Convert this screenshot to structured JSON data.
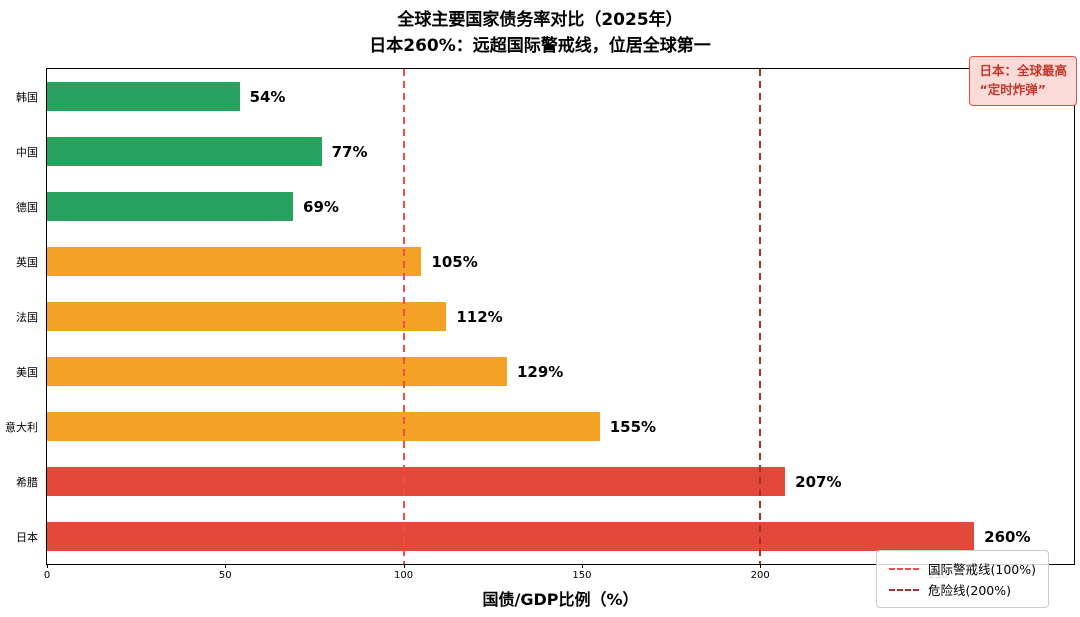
{
  "title": "全球主要国家债务率对比（2025年）",
  "subtitle": "日本260%：远超国际警戒线，位居全球第一",
  "xlabel": "国债/GDP比例（%）",
  "annotation": {
    "line1": "日本：全球最高",
    "line2": "“定时炸弹”"
  },
  "legend": [
    {
      "label": "国际警戒线(100%)",
      "color": "#f24c4c"
    },
    {
      "label": "危险线(200%)",
      "color": "#a93226"
    }
  ],
  "colors": {
    "safe": "#27a35f",
    "warning": "#f4a226",
    "danger": "#e2493b",
    "warning_line": "#f24c4c",
    "danger_line": "#a93226",
    "annotation_bg": "#fadbd8",
    "annotation_border": "#e74c3c",
    "annotation_text": "#c0392b"
  },
  "chart_data": {
    "type": "bar",
    "orientation": "horizontal",
    "title": "全球主要国家债务率对比（2025年）",
    "subtitle": "日本260%：远超国际警戒线，位居全球第一",
    "xlabel": "国债/GDP比例（%）",
    "ylabel": "",
    "categories": [
      "韩国",
      "中国",
      "德国",
      "英国",
      "法国",
      "美国",
      "意大利",
      "希腊",
      "日本"
    ],
    "values": [
      54,
      77,
      69,
      105,
      112,
      129,
      155,
      207,
      260
    ],
    "value_labels": [
      "54%",
      "77%",
      "69%",
      "105%",
      "112%",
      "129%",
      "155%",
      "207%",
      "260%"
    ],
    "bar_colors": [
      "#27a35f",
      "#27a35f",
      "#27a35f",
      "#f4a226",
      "#f4a226",
      "#f4a226",
      "#f4a226",
      "#e2493b",
      "#e2493b"
    ],
    "xlim": [
      0,
      288
    ],
    "xticks": [
      0,
      50,
      100,
      150,
      200,
      250
    ],
    "grid": false,
    "legend_position": "lower right",
    "reference_lines": [
      {
        "value": 100,
        "label": "国际警戒线(100%)",
        "color": "#f24c4c",
        "style": "dashed"
      },
      {
        "value": 200,
        "label": "危险线(200%)",
        "color": "#a93226",
        "style": "dashed"
      }
    ]
  }
}
